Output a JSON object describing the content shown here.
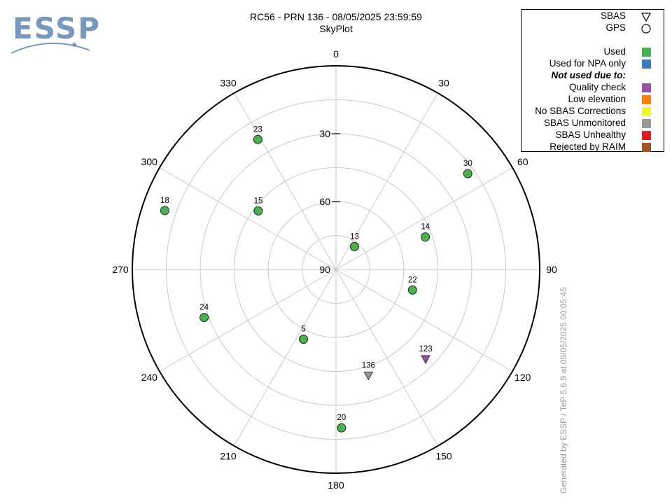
{
  "logo": {
    "text": "ESSP"
  },
  "header": {
    "title": "RC56 - PRN 136 - 08/05/2025 23:59:59",
    "subtitle": "SkyPlot"
  },
  "legend": {
    "symbols": [
      {
        "label": "SBAS",
        "symbol": "triangle"
      },
      {
        "label": "GPS",
        "symbol": "circle"
      }
    ],
    "statuses": [
      {
        "label": "Used",
        "color": "#4caf50"
      },
      {
        "label": "Used for NPA only",
        "color": "#3a7abf"
      }
    ],
    "not_used_heading": "Not used due to:",
    "reasons": [
      {
        "label": "Quality check",
        "color": "#9b4fa6"
      },
      {
        "label": "Low elevation",
        "color": "#f7820f"
      },
      {
        "label": "No SBAS Corrections",
        "color": "#f5f52b"
      },
      {
        "label": "SBAS Unmonitored",
        "color": "#999999"
      },
      {
        "label": "SBAS Unhealthy",
        "color": "#e02020"
      },
      {
        "label": "Rejected by RAIM",
        "color": "#a0522d"
      }
    ]
  },
  "footer": {
    "text": "Generated by ESSP / TeP 5.6.9 at 09/05/2025 00:05:45"
  },
  "chart_data": {
    "type": "scatter",
    "projection": "polar-skyplot",
    "azimuth_ticks": [
      "0",
      "30",
      "60",
      "90",
      "120",
      "150",
      "180",
      "210",
      "240",
      "270",
      "300",
      "330"
    ],
    "elevation_ticks": [
      "30",
      "60",
      "90"
    ],
    "elevation_range": [
      0,
      90
    ],
    "satellites": [
      {
        "prn": "13",
        "az": 39,
        "el": 77,
        "type": "GPS",
        "status": "Used"
      },
      {
        "prn": "14",
        "az": 70,
        "el": 48,
        "type": "GPS",
        "status": "Used"
      },
      {
        "prn": "30",
        "az": 54,
        "el": 18,
        "type": "GPS",
        "status": "Used"
      },
      {
        "prn": "22",
        "az": 105,
        "el": 55,
        "type": "GPS",
        "status": "Used"
      },
      {
        "prn": "123",
        "az": 135,
        "el": 34,
        "type": "SBAS",
        "status": "Quality check"
      },
      {
        "prn": "136",
        "az": 163,
        "el": 41,
        "type": "SBAS",
        "status": "SBAS Unmonitored"
      },
      {
        "prn": "20",
        "az": 178,
        "el": 20,
        "type": "GPS",
        "status": "Used"
      },
      {
        "prn": "5",
        "az": 205,
        "el": 56,
        "type": "GPS",
        "status": "Used"
      },
      {
        "prn": "24",
        "az": 250,
        "el": 28,
        "type": "GPS",
        "status": "Used"
      },
      {
        "prn": "18",
        "az": 289,
        "el": 10,
        "type": "GPS",
        "status": "Used"
      },
      {
        "prn": "15",
        "az": 307,
        "el": 47,
        "type": "GPS",
        "status": "Used"
      },
      {
        "prn": "23",
        "az": 329,
        "el": 23,
        "type": "GPS",
        "status": "Used"
      }
    ]
  }
}
